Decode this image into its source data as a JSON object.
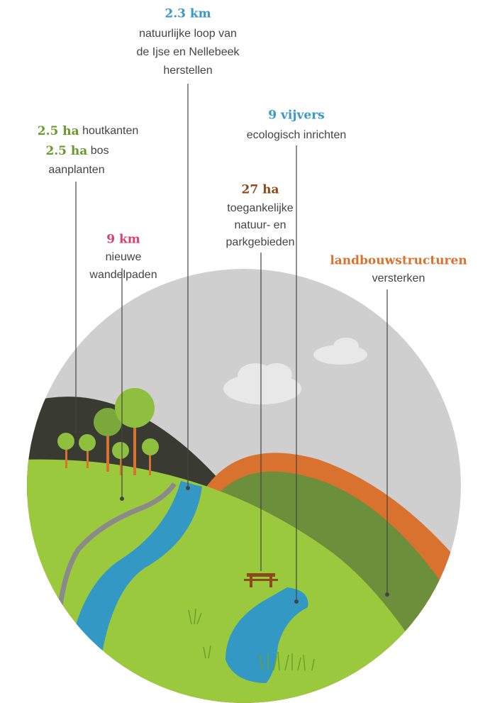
{
  "callouts": [
    {
      "highlight": "2.3 km",
      "lines": [
        "natuurlijke loop van",
        "de Ijse en Nellebeek",
        "herstellen"
      ]
    },
    {
      "rows": [
        {
          "highlight": "2.5 ha",
          "text": "houtkanten"
        },
        {
          "highlight": "2.5 ha",
          "text": "bos"
        }
      ],
      "lines": [
        "aanplanten"
      ]
    },
    {
      "highlight": "9 vijvers",
      "lines": [
        "ecologisch inrichten"
      ]
    },
    {
      "highlight": "27 ha",
      "lines": [
        "toegankelijke",
        "natuur- en",
        "parkgebieden"
      ]
    },
    {
      "highlight": "9 km",
      "lines": [
        "nieuwe",
        "wandelpaden"
      ]
    },
    {
      "highlight": "landbouwstructuren",
      "lines": [
        "versterken"
      ]
    }
  ]
}
